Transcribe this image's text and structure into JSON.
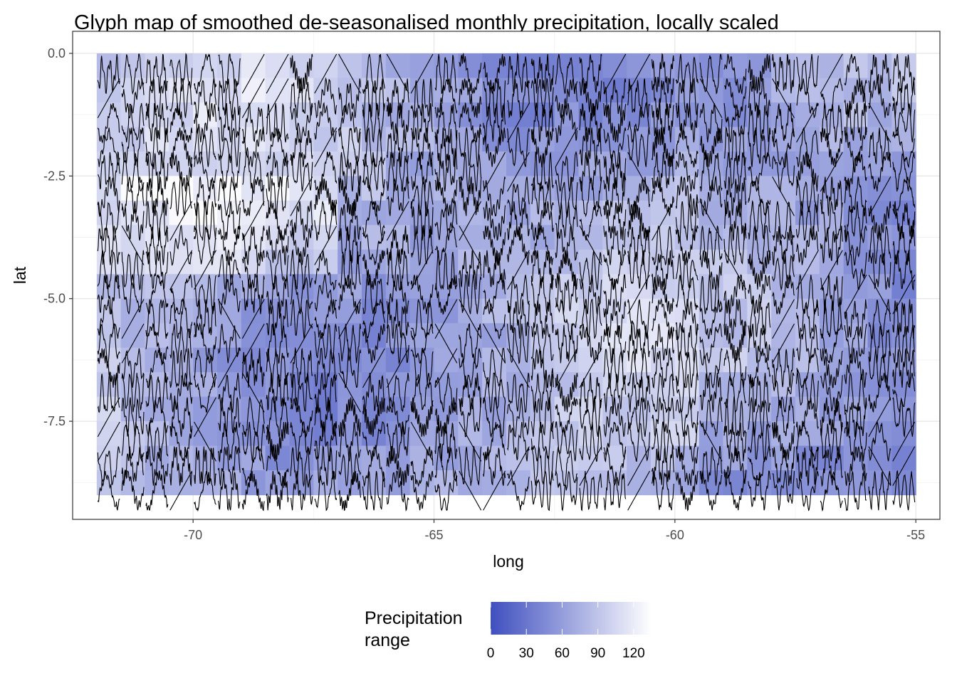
{
  "chart_data": {
    "type": "glyph-map",
    "title": "Glyph map of smoothed de-seasonalised monthly precipitation, locally scaled",
    "xlabel": "long",
    "ylabel": "lat",
    "xlim": [
      -72.5,
      -54.5
    ],
    "ylim": [
      -9.5,
      0.45
    ],
    "x_ticks": [
      -70,
      -65,
      -60,
      -55
    ],
    "x_tick_labels": [
      "-70",
      "-65",
      "-60",
      "-55"
    ],
    "y_ticks": [
      0,
      -2.5,
      -5,
      -7.5
    ],
    "y_tick_labels": [
      "0.0",
      "-2.5",
      "-5.0",
      "-7.5"
    ],
    "grid": true,
    "grid_extent": {
      "long": [
        -72,
        -55
      ],
      "lat": [
        -9,
        0
      ],
      "cols": 34,
      "rows": 18
    },
    "legend": {
      "title_lines": [
        "Precipitation",
        "range"
      ],
      "placement": "bottom",
      "range": [
        0,
        135
      ],
      "breaks": [
        0,
        30,
        60,
        90,
        120
      ],
      "break_labels": [
        "0",
        "30",
        "60",
        "90",
        "120"
      ],
      "color_low": "#3f4fbf",
      "color_high": "#ffffff"
    },
    "glyph_color": "#000000"
  }
}
